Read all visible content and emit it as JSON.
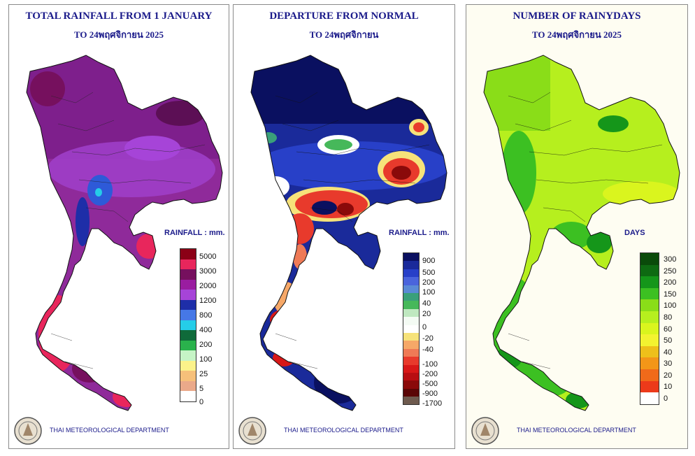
{
  "panels": [
    {
      "title1": "TOTAL RAINFALL FROM 1 JANUARY",
      "title2": "TO 24พฤศจิกายน 2025",
      "legend_title": "RAINFALL : mm.",
      "footer": "THAI METEOROLOGICAL DEPARTMENT",
      "legend": [
        {
          "label": "5000",
          "color": "#8b0016"
        },
        {
          "label": "3000",
          "color": "#e8265c"
        },
        {
          "label": "2000",
          "color": "#76105e"
        },
        {
          "label": "",
          "color": "#9a1da0"
        },
        {
          "label": "1200",
          "color": "#a644d8"
        },
        {
          "label": "800",
          "color": "#1e2ea8"
        },
        {
          "label": "400",
          "color": "#4678e6"
        },
        {
          "label": "",
          "color": "#25cde8"
        },
        {
          "label": "200",
          "color": "#0f6a3a"
        },
        {
          "label": "100",
          "color": "#2ab24c"
        },
        {
          "label": "",
          "color": "#c6f4c6"
        },
        {
          "label": "25",
          "color": "#fbf28a"
        },
        {
          "label": "",
          "color": "#f6c07a"
        },
        {
          "label": "5",
          "color": "#eaa98a"
        },
        {
          "label": "0",
          "color": "#ffffff"
        }
      ]
    },
    {
      "title1": "DEPARTURE FROM NORMAL",
      "title2": "TO 24พฤศจิกายน",
      "legend_title": "RAINFALL : mm.",
      "footer": "THAI METEOROLOGICAL DEPARTMENT",
      "legend": [
        {
          "label": "900",
          "color": "#0a1060"
        },
        {
          "label": "",
          "color": "#1a2a9a"
        },
        {
          "label": "500",
          "color": "#2840c8"
        },
        {
          "label": "200",
          "color": "#4a64dc"
        },
        {
          "label": "100",
          "color": "#5a8ad6"
        },
        {
          "label": "",
          "color": "#3aa07a"
        },
        {
          "label": "40",
          "color": "#46b85a"
        },
        {
          "label": "20",
          "color": "#bfe8c0"
        },
        {
          "label": "",
          "color": "#f4fbf4"
        },
        {
          "label": "0",
          "color": "#ffffff"
        },
        {
          "label": "-20",
          "color": "#f6e27a"
        },
        {
          "label": "",
          "color": "#f6a868"
        },
        {
          "label": "-40",
          "color": "#ef7a56"
        },
        {
          "label": "",
          "color": "#e83a2c"
        },
        {
          "label": "-100",
          "color": "#d81818"
        },
        {
          "label": "-200",
          "color": "#b80e12"
        },
        {
          "label": "-500",
          "color": "#8a0a0a"
        },
        {
          "label": "-900",
          "color": "#5a0606"
        },
        {
          "label": "-1700",
          "color": "#6e5a4e"
        }
      ]
    },
    {
      "title1": "NUMBER OF RAINYDAYS",
      "title2": "TO 24พฤศจิกายน 2025",
      "legend_title": "DAYS",
      "footer": "THAI METEOROLOGICAL DEPARTMENT",
      "legend": [
        {
          "label": "300",
          "color": "#0a4a0a"
        },
        {
          "label": "250",
          "color": "#0e6a12"
        },
        {
          "label": "200",
          "color": "#15961a"
        },
        {
          "label": "150",
          "color": "#3cc022"
        },
        {
          "label": "100",
          "color": "#8add18"
        },
        {
          "label": "80",
          "color": "#b6ef1e"
        },
        {
          "label": "60",
          "color": "#daf51e"
        },
        {
          "label": "50",
          "color": "#f3f330"
        },
        {
          "label": "40",
          "color": "#eec01a"
        },
        {
          "label": "30",
          "color": "#f39618"
        },
        {
          "label": "20",
          "color": "#f06a1a"
        },
        {
          "label": "10",
          "color": "#ec3a1a"
        },
        {
          "label": "0",
          "color": "#ffffff"
        }
      ]
    }
  ]
}
